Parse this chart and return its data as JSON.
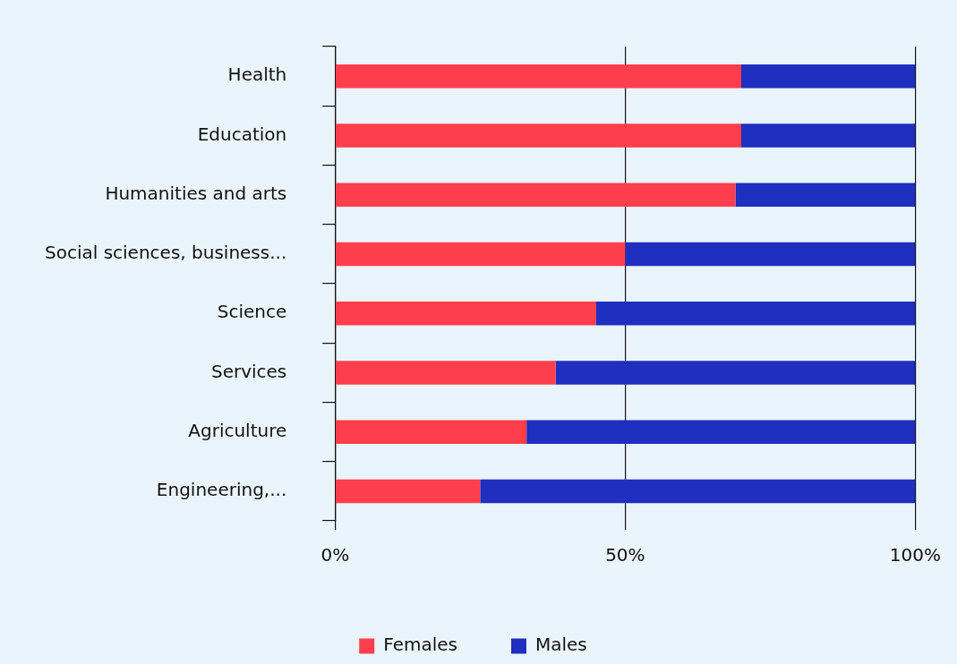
{
  "chart_data": {
    "type": "bar",
    "orientation": "horizontal",
    "stacked": true,
    "categories": [
      "Health",
      "Education",
      "Humanities and arts",
      "Social sciences, business...",
      "Science",
      "Services",
      "Agriculture",
      "Engineering,..."
    ],
    "series": [
      {
        "name": "Females",
        "color": "#ff3e4d",
        "values": [
          70,
          70,
          69,
          50,
          45,
          38,
          33,
          25
        ]
      },
      {
        "name": "Males",
        "color": "#1f2fbf",
        "values": [
          30,
          30,
          31,
          50,
          55,
          62,
          67,
          75
        ]
      }
    ],
    "xlim": [
      0,
      100
    ],
    "xticks": [
      {
        "value": 0,
        "label": "0%"
      },
      {
        "value": 50,
        "label": "50%"
      },
      {
        "value": 100,
        "label": "100%"
      }
    ],
    "grid": "x",
    "legend": "bottom"
  }
}
